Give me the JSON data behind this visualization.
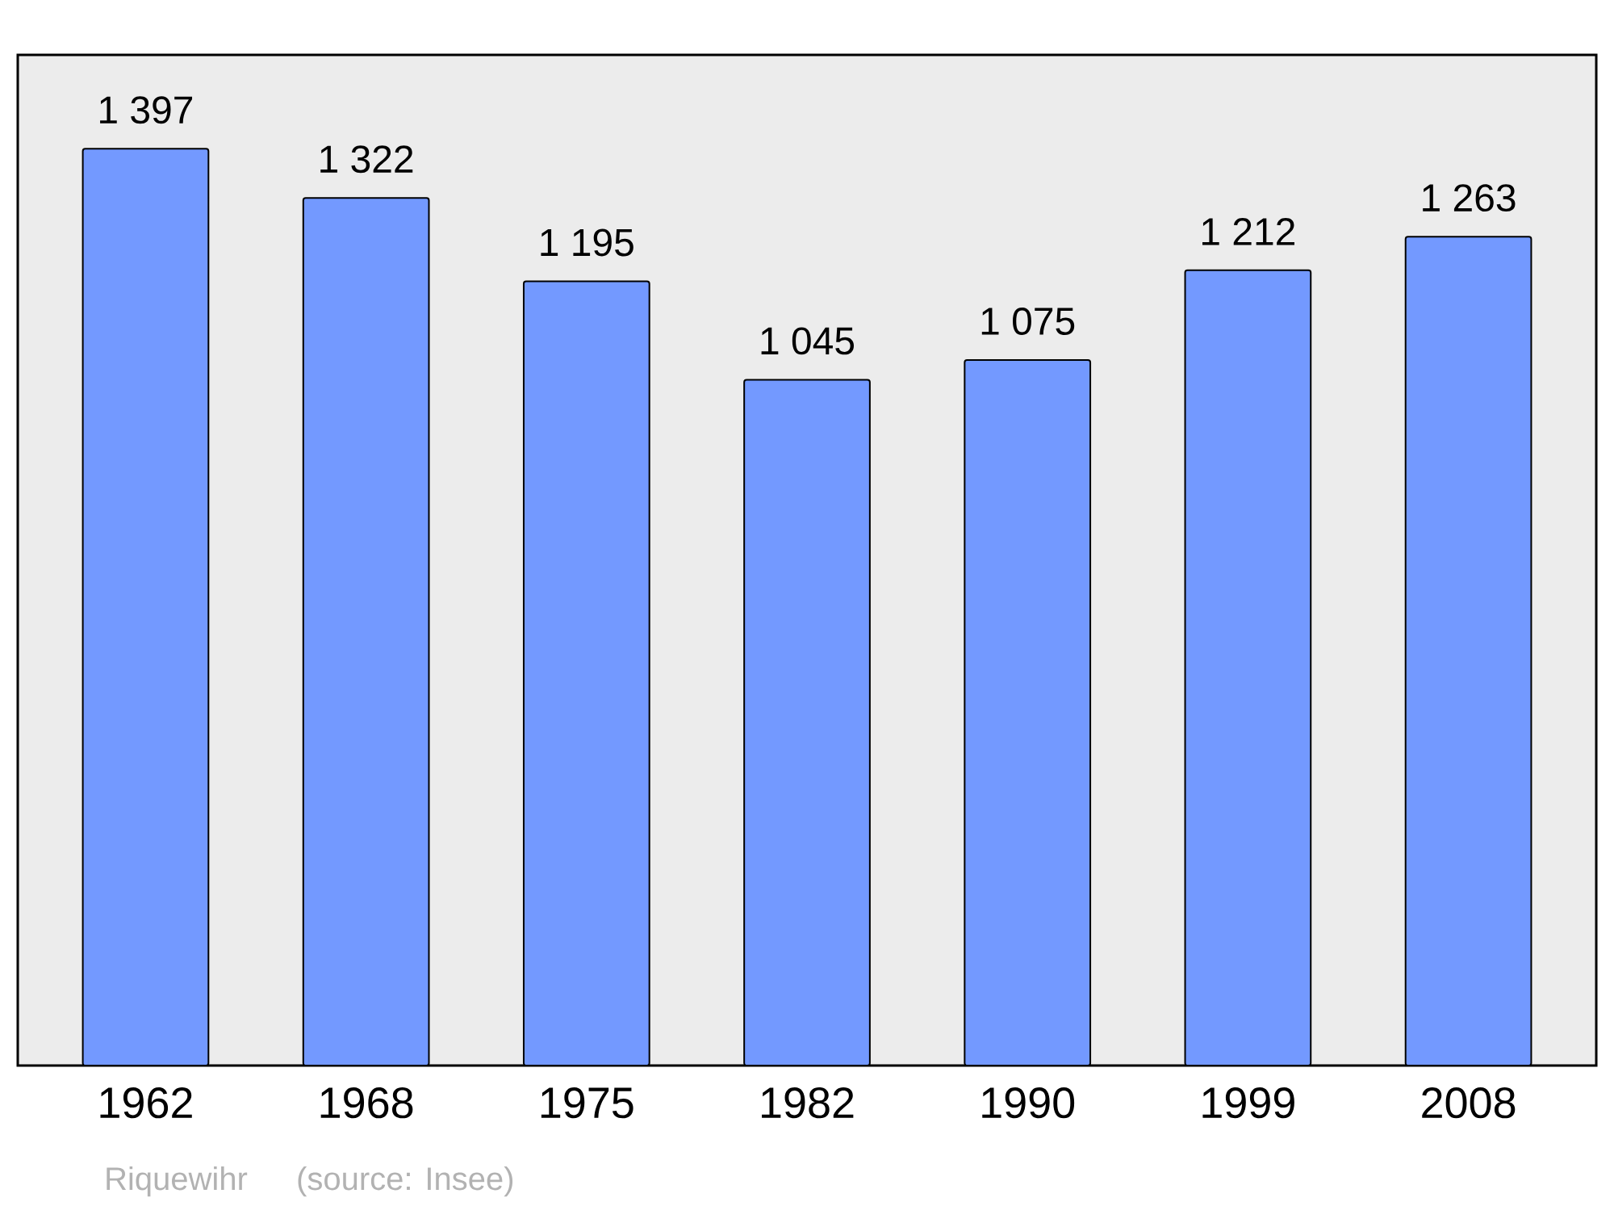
{
  "chart_data": {
    "type": "bar",
    "categories": [
      "1962",
      "1968",
      "1975",
      "1982",
      "1990",
      "1999",
      "2008"
    ],
    "values": [
      1397,
      1322,
      1195,
      1045,
      1075,
      1212,
      1263
    ],
    "value_labels": [
      "1 397",
      "1 322",
      "1 195",
      "1 045",
      "1 075",
      "1 212",
      "1 263"
    ],
    "color": "#7399ff",
    "ylim": [
      0,
      1540
    ],
    "tick_labels": "x",
    "annotations": [
      "Riquewihr",
      "(source: Insee)"
    ]
  }
}
